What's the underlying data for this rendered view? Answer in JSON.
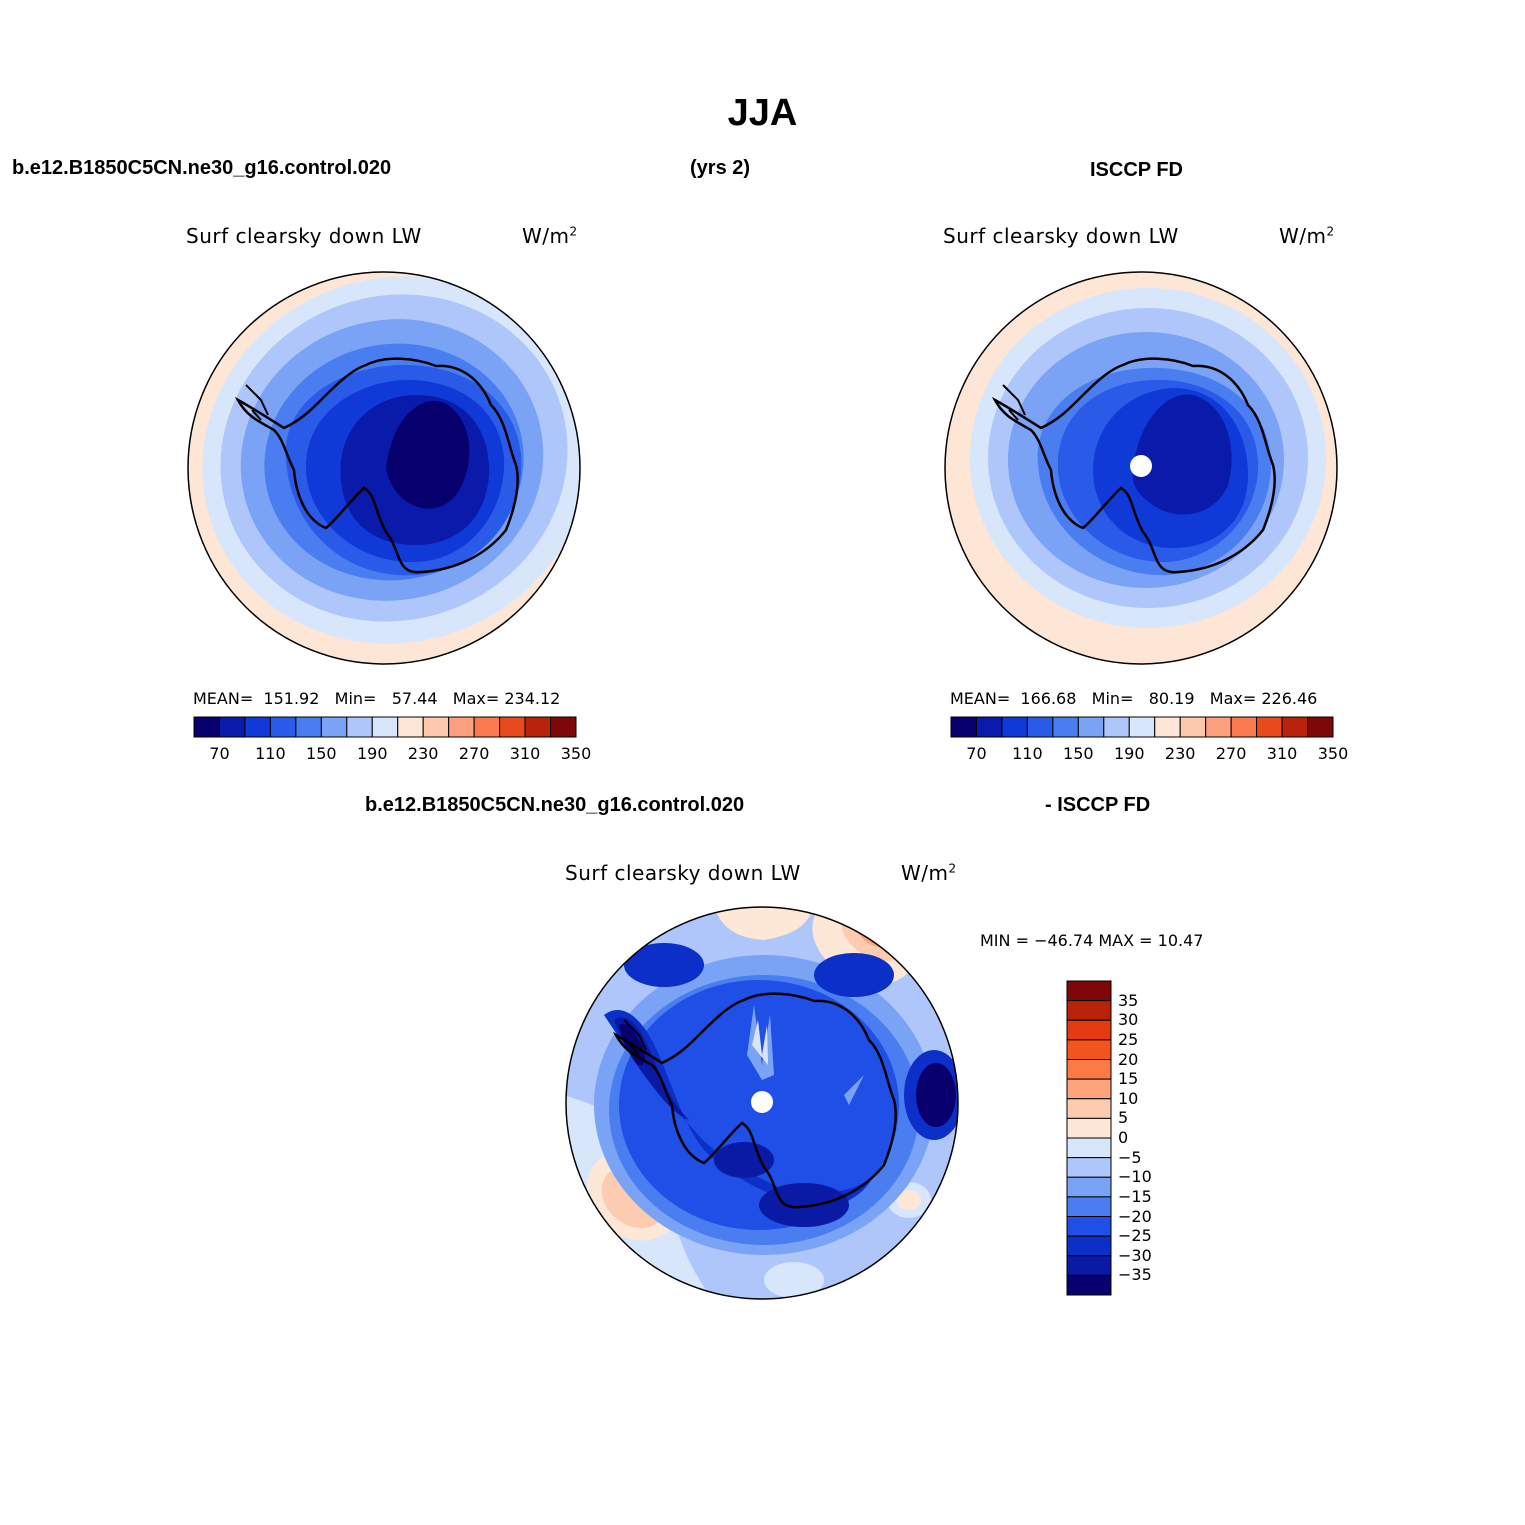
{
  "season": "JJA",
  "header": {
    "case": "b.e12.B1850C5CN.ne30_g16.control.020",
    "years": "(yrs 2)",
    "obs": "ISCCP FD"
  },
  "panels": {
    "model": {
      "title": "Surf clearsky down LW",
      "units": "W/m",
      "units_sup": "2",
      "mean_label": "MEAN=",
      "mean": "151.92",
      "min_label": "Min=",
      "min": "57.44",
      "max_label": "Max=",
      "max": "234.12"
    },
    "obs": {
      "title": "Surf clearsky down LW",
      "units": "W/m",
      "units_sup": "2",
      "mean_label": "MEAN=",
      "mean": "166.68",
      "min_label": "Min=",
      "min": "80.19",
      "max_label": "Max=",
      "max": "226.46"
    },
    "diff": {
      "case": "b.e12.B1850C5CN.ne30_g16.control.020",
      "obs": "- ISCCP FD",
      "title": "Surf clearsky down LW",
      "units": "W/m",
      "units_sup": "2",
      "minmax_label": "MIN = −46.74 MAX =  10.47"
    }
  },
  "chart_data": [
    {
      "type": "heatmap",
      "name": "model",
      "title": "Surf clearsky down LW",
      "projection": "south polar stereographic",
      "levels": [
        70,
        90,
        110,
        130,
        150,
        170,
        190,
        210,
        230,
        250,
        270,
        290,
        310,
        330,
        350
      ],
      "tick_labels": [
        "70",
        "110",
        "150",
        "190",
        "230",
        "270",
        "310",
        "350"
      ],
      "mean": 151.92,
      "min": 57.44,
      "max": 234.12
    },
    {
      "type": "heatmap",
      "name": "obs",
      "title": "Surf clearsky down LW",
      "projection": "south polar stereographic",
      "levels": [
        70,
        90,
        110,
        130,
        150,
        170,
        190,
        210,
        230,
        250,
        270,
        290,
        310,
        330,
        350
      ],
      "tick_labels": [
        "70",
        "110",
        "150",
        "190",
        "230",
        "270",
        "310",
        "350"
      ],
      "mean": 166.68,
      "min": 80.19,
      "max": 226.46
    },
    {
      "type": "heatmap",
      "name": "difference",
      "title": "Surf clearsky down LW",
      "projection": "south polar stereographic",
      "levels": [
        35,
        30,
        25,
        20,
        15,
        10,
        5,
        0,
        -5,
        -10,
        -15,
        -20,
        -25,
        -30,
        -35
      ],
      "tick_labels": [
        "35",
        "30",
        "25",
        "20",
        "15",
        "10",
        "5",
        "0",
        "−5",
        "−10",
        "−15",
        "−20",
        "−25",
        "−30",
        "−35"
      ],
      "min": -46.74,
      "max": 10.47
    }
  ],
  "colors": {
    "seq": [
      "#08006f",
      "#0a1aab",
      "#0f3ad8",
      "#2a5be8",
      "#4a7ef0",
      "#7aa3f6",
      "#aec6fa",
      "#d8e6fc",
      "#fde6d5",
      "#fdc8ad",
      "#fca07e",
      "#f97a4f",
      "#e8491d",
      "#b8240a",
      "#7e0808"
    ],
    "div": [
      "#7e0808",
      "#b8240a",
      "#e33a10",
      "#f2541e",
      "#fb7a45",
      "#fda47c",
      "#fdcbb0",
      "#fde8d8",
      "#d8e6fc",
      "#aec6fa",
      "#7aa3f6",
      "#4a7ef0",
      "#1f4fe6",
      "#0c2fc8",
      "#0a1aa5",
      "#08006f"
    ]
  }
}
